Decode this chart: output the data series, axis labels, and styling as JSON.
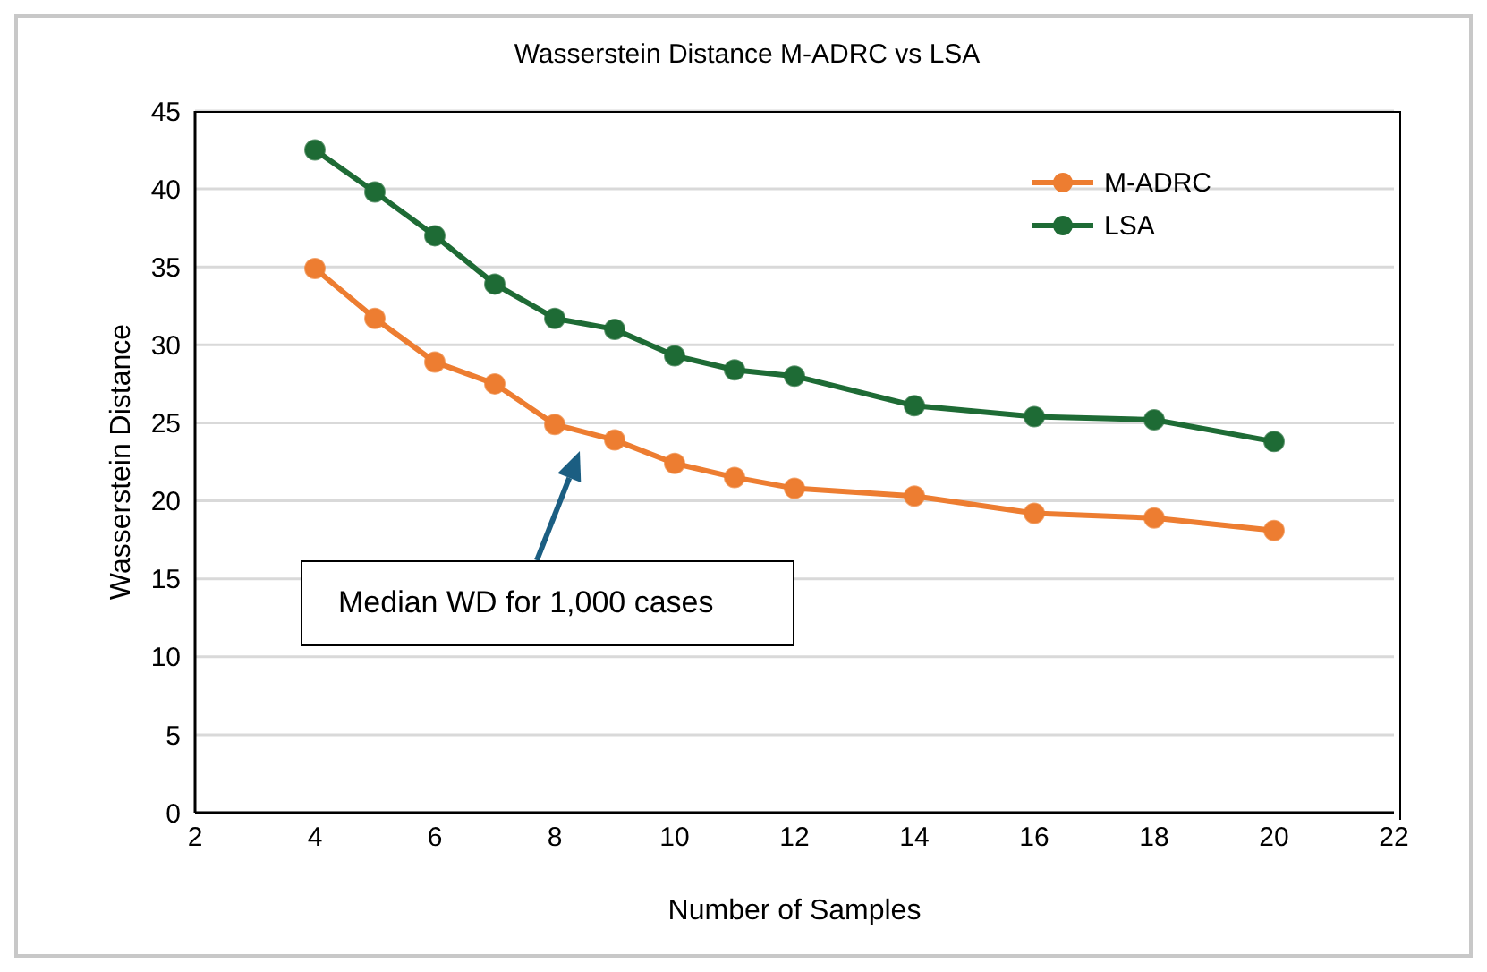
{
  "chart_data": {
    "type": "line",
    "title": "Wasserstein Distance M-ADRC vs LSA",
    "xlabel": "Number of Samples",
    "ylabel": "Wasserstein Distance",
    "x": [
      4,
      5,
      6,
      7,
      8,
      9,
      10,
      11,
      12,
      14,
      16,
      18,
      20
    ],
    "series": [
      {
        "name": "M-ADRC",
        "color": "#ed7d31",
        "values": [
          34.9,
          31.7,
          28.9,
          27.5,
          24.9,
          23.9,
          22.4,
          21.5,
          20.8,
          20.3,
          19.2,
          18.9,
          18.1
        ]
      },
      {
        "name": "LSA",
        "color": "#1e6b35",
        "values": [
          42.5,
          39.8,
          37.0,
          33.9,
          31.7,
          31.0,
          29.3,
          28.4,
          28.0,
          26.1,
          25.4,
          25.2,
          23.8
        ]
      }
    ],
    "xlim": [
      2,
      22
    ],
    "xticks": [
      2,
      4,
      6,
      8,
      10,
      12,
      14,
      16,
      18,
      20,
      22
    ],
    "ylim": [
      0,
      45
    ],
    "yticks": [
      0,
      5,
      10,
      15,
      20,
      25,
      30,
      35,
      40,
      45
    ],
    "grid": "y",
    "legend": "top right",
    "marker": "circle",
    "line_style": "solid",
    "annotations": [
      "Median WD for 1,000 cases"
    ]
  }
}
